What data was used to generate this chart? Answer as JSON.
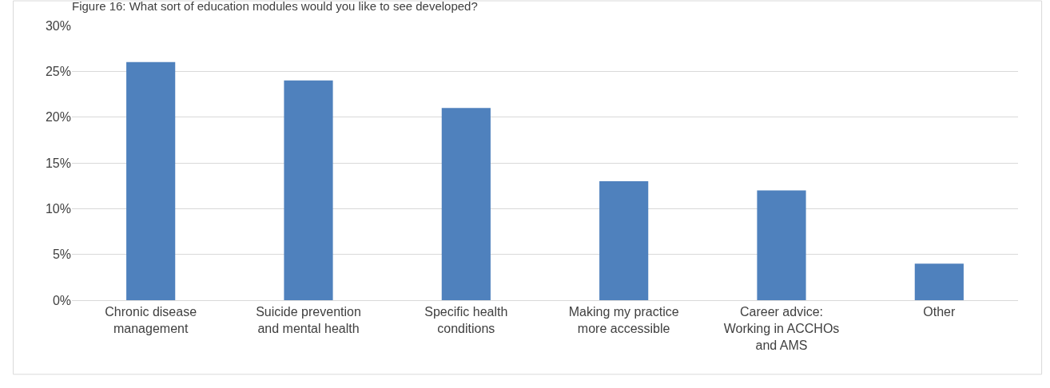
{
  "chart_data": {
    "type": "bar",
    "title": "Figure 16: What sort of education modules would you like to see developed?",
    "categories": [
      "Chronic disease\nmanagement",
      "Suicide prevention\nand mental health",
      "Specific health\nconditions",
      "Making my practice\nmore accessible",
      "Career advice:\nWorking in ACCHOs\nand AMS",
      "Other"
    ],
    "values": [
      26,
      24,
      21,
      13,
      12,
      4
    ],
    "color": "#4f81bd",
    "ylim": [
      0,
      30
    ],
    "yticks": [
      {
        "value": 0,
        "label": "0%"
      },
      {
        "value": 5,
        "label": "5%"
      },
      {
        "value": 10,
        "label": "10%"
      },
      {
        "value": 15,
        "label": "15%"
      },
      {
        "value": 20,
        "label": "20%"
      },
      {
        "value": 25,
        "label": "25%"
      },
      {
        "value": 30,
        "label": "30%"
      }
    ],
    "grid": "y"
  }
}
